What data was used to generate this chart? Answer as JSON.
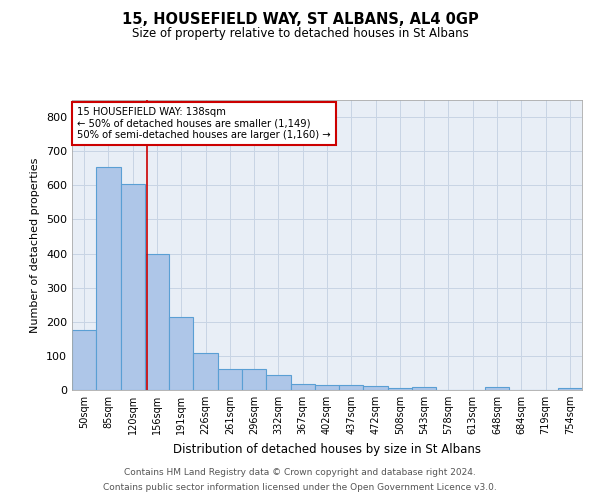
{
  "title": "15, HOUSEFIELD WAY, ST ALBANS, AL4 0GP",
  "subtitle": "Size of property relative to detached houses in St Albans",
  "xlabel": "Distribution of detached houses by size in St Albans",
  "ylabel": "Number of detached properties",
  "footer_line1": "Contains HM Land Registry data © Crown copyright and database right 2024.",
  "footer_line2": "Contains public sector information licensed under the Open Government Licence v3.0.",
  "bin_labels": [
    "50sqm",
    "85sqm",
    "120sqm",
    "156sqm",
    "191sqm",
    "226sqm",
    "261sqm",
    "296sqm",
    "332sqm",
    "367sqm",
    "402sqm",
    "437sqm",
    "472sqm",
    "508sqm",
    "543sqm",
    "578sqm",
    "613sqm",
    "648sqm",
    "684sqm",
    "719sqm",
    "754sqm"
  ],
  "bar_values": [
    175,
    655,
    605,
    400,
    215,
    107,
    63,
    63,
    45,
    17,
    16,
    14,
    13,
    7,
    8,
    0,
    0,
    8,
    0,
    0,
    7
  ],
  "bar_color": "#aec6e8",
  "bar_edge_color": "#5a9fd4",
  "bar_edge_width": 0.8,
  "grid_color": "#c8d4e4",
  "bg_color": "#e8eef6",
  "annotation_line1": "15 HOUSEFIELD WAY: 138sqm",
  "annotation_line2": "← 50% of detached houses are smaller (1,149)",
  "annotation_line3": "50% of semi-detached houses are larger (1,160) →",
  "annotation_box_color": "#ffffff",
  "annotation_box_edge_color": "#cc0000",
  "red_line_x": 2.6,
  "ylim": [
    0,
    850
  ],
  "yticks": [
    0,
    100,
    200,
    300,
    400,
    500,
    600,
    700,
    800
  ]
}
